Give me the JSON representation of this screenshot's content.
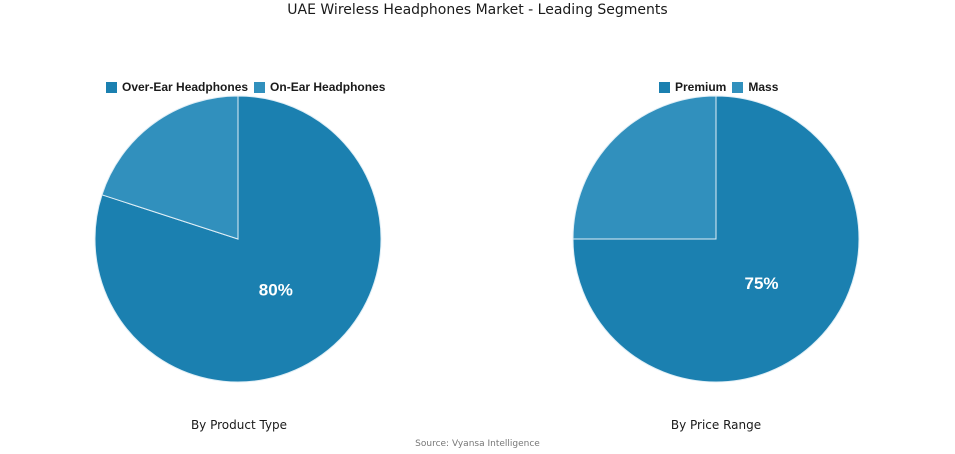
{
  "title": "UAE Wireless Headphones Market - Leading Segments",
  "source": "Source: Vyansa Intelligence",
  "colors": {
    "primary": "#1b80b0",
    "secondary": "#3190bd",
    "divider": "#dfeef6"
  },
  "chart_data": [
    {
      "type": "pie",
      "caption": "By Product Type",
      "legend_position": "top",
      "slices": [
        {
          "label": "Over-Ear Headphones",
          "value": 80,
          "value_label": "80%",
          "color": "#1b80b0"
        },
        {
          "label": "On-Ear Headphones",
          "value": 20,
          "value_label": "",
          "color": "#3190bd"
        }
      ]
    },
    {
      "type": "pie",
      "caption": "By Price Range",
      "legend_position": "top",
      "slices": [
        {
          "label": "Premium",
          "value": 75,
          "value_label": "75%",
          "color": "#1b80b0"
        },
        {
          "label": "Mass",
          "value": 25,
          "value_label": "",
          "color": "#3190bd"
        }
      ]
    }
  ]
}
